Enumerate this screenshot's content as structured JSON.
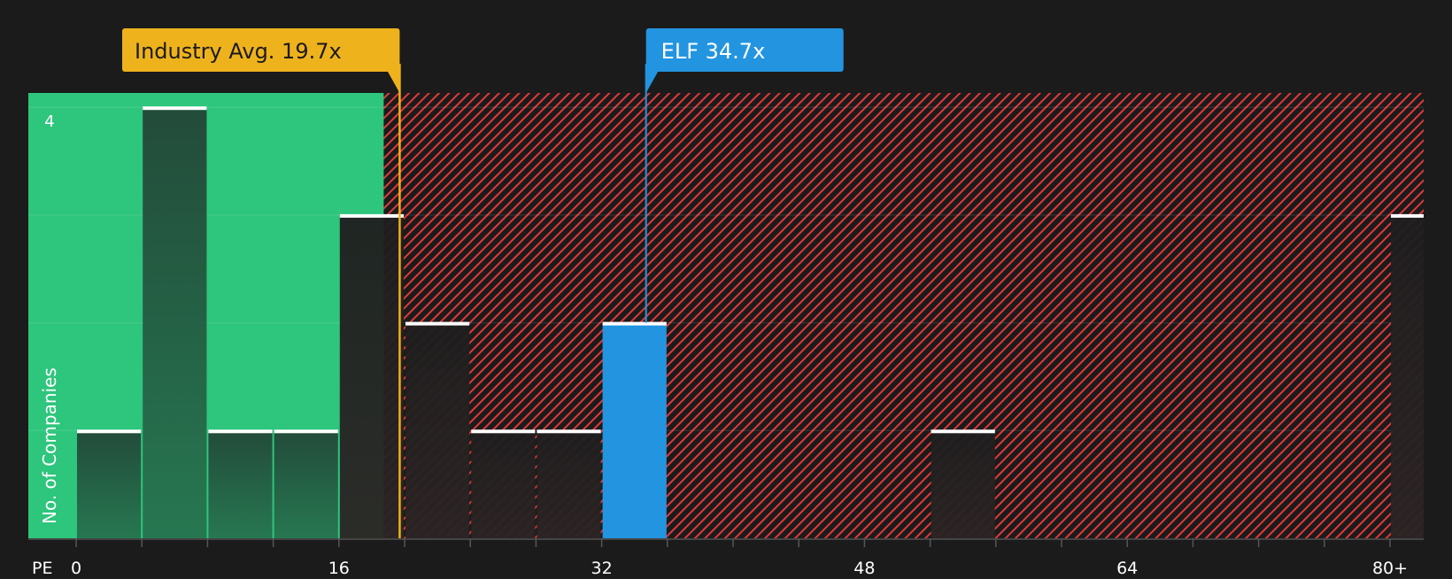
{
  "chart_data": {
    "type": "bar",
    "xlabel": "PE",
    "ylabel": "No. of Companies",
    "ylim": [
      0,
      4
    ],
    "ytick_labels": [
      "4"
    ],
    "xtick_labels": [
      "0",
      "16",
      "32",
      "48",
      "64",
      "80+"
    ],
    "xtick_values": [
      0,
      16,
      32,
      48,
      64,
      80
    ],
    "xlim": [
      0,
      82
    ],
    "bin_width": 4,
    "grid": true,
    "bins": [
      {
        "start": 0,
        "value": 1
      },
      {
        "start": 4,
        "value": 4
      },
      {
        "start": 8,
        "value": 1
      },
      {
        "start": 12,
        "value": 1
      },
      {
        "start": 16,
        "value": 3
      },
      {
        "start": 20,
        "value": 2
      },
      {
        "start": 24,
        "value": 1
      },
      {
        "start": 28,
        "value": 1
      },
      {
        "start": 32,
        "value": 2,
        "highlight": true
      },
      {
        "start": 52,
        "value": 1
      },
      {
        "start": 80,
        "value": 3,
        "overflow": true
      }
    ],
    "industry_avg": {
      "label": "Industry Avg. 19.7x",
      "value": 19.7
    },
    "company": {
      "label": "ELF 34.7x",
      "value": 34.7
    },
    "colors": {
      "background": "#1b1b1b",
      "good_zone": "#2ec57c",
      "bad_zone_hatch": "#e0393b",
      "industry": "#eeb21c",
      "company": "#2394e0",
      "bar_top": "#ffffff"
    }
  }
}
